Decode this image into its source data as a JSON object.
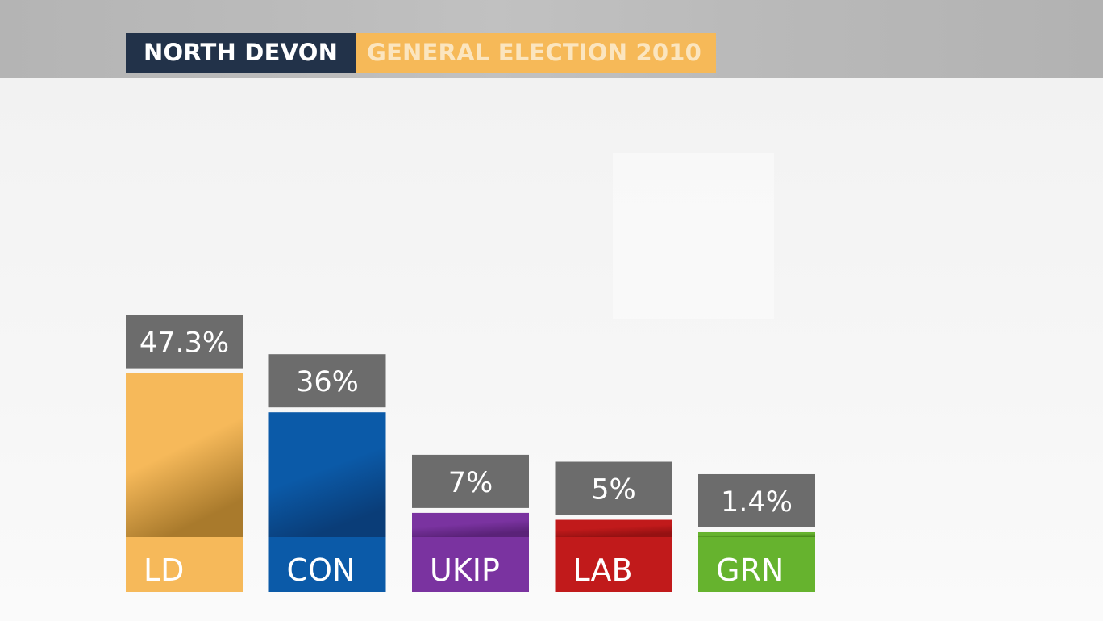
{
  "header": {
    "place": "NORTH DEVON",
    "event": "GENERAL ELECTION 2010",
    "event_bg": "#f6b958",
    "event_text": "#fbe5bf"
  },
  "chart_data": {
    "type": "bar",
    "title": "",
    "xlabel": "",
    "ylabel": "",
    "ylim": [
      0,
      50
    ],
    "categories": [
      "LD",
      "CON",
      "UKIP",
      "LAB",
      "GRN"
    ],
    "values": [
      47.3,
      36,
      7,
      5,
      1.4
    ],
    "value_labels": [
      "47.3%",
      "36%",
      "7%",
      "5%",
      "1.4%"
    ],
    "colors": [
      "#f6b95a",
      "#0b5aa8",
      "#7a33a0",
      "#c11a1b",
      "#66b32e"
    ],
    "dark_colors": [
      "#a97a2c",
      "#0a3d78",
      "#5a2278",
      "#951112",
      "#4a8a1d"
    ],
    "label_box_color": "#6c6c6c",
    "grid": false,
    "legend": "none"
  }
}
